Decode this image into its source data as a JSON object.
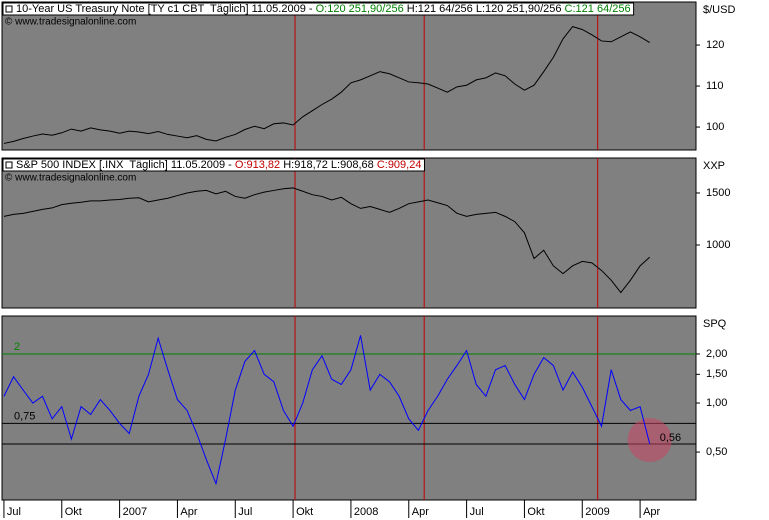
{
  "chart_data": [
    {
      "type": "line",
      "legend": [
        {
          "text": "10-Year US Treasury Note [TY c1 CBT  Täglich] 11.05.2009 - ",
          "color": "#000000"
        },
        {
          "text": "O:120 251,90/256",
          "color": "#008000"
        },
        {
          "text": " H:121 64/256 L:120 251,90/256 ",
          "color": "#000000"
        },
        {
          "text": "C:121 64/256",
          "color": "#008000"
        }
      ],
      "source": "© www.tradesignalonline.com",
      "unit": "$/USD",
      "color": "#000000",
      "x": [
        0,
        0.5,
        1,
        1.5,
        2,
        2.5,
        3,
        3.5,
        4,
        4.5,
        5,
        5.5,
        6,
        6.5,
        7,
        7.5,
        8,
        8.5,
        9,
        9.5,
        10,
        10.5,
        11,
        11.5,
        12,
        12.5,
        13,
        13.5,
        14,
        14.5,
        15,
        15.5,
        16,
        16.5,
        17,
        17.5,
        18,
        18.5,
        19,
        19.5,
        20,
        20.5,
        21,
        21.5,
        22,
        22.5,
        23,
        23.5,
        24,
        24.5,
        25,
        25.5,
        26,
        26.5,
        27,
        27.5,
        28,
        28.5,
        29,
        29.5,
        30,
        30.5,
        31,
        31.5,
        32,
        32.5,
        33,
        33.5
      ],
      "values": [
        96.0,
        96.5,
        97.2,
        97.8,
        98.3,
        98.0,
        98.6,
        99.5,
        99.0,
        99.8,
        99.3,
        99.0,
        98.5,
        99.0,
        98.8,
        98.4,
        98.9,
        98.2,
        97.8,
        97.4,
        97.9,
        97.0,
        96.6,
        97.5,
        98.2,
        99.4,
        100.2,
        99.6,
        100.8,
        101.0,
        100.5,
        102.5,
        104.0,
        105.5,
        106.8,
        108.5,
        110.8,
        111.5,
        112.5,
        113.5,
        113.0,
        112.0,
        111.0,
        110.8,
        110.5,
        109.5,
        108.5,
        109.8,
        110.2,
        111.5,
        112.0,
        113.2,
        112.5,
        110.5,
        109.0,
        110.2,
        113.5,
        117.0,
        121.5,
        124.5,
        123.8,
        122.5,
        121.0,
        120.8,
        122.0,
        123.2,
        122.0,
        120.6
      ],
      "xlim": [
        -0.1,
        35.9
      ],
      "ylim": [
        94.4,
        130.5
      ],
      "yticks": [
        100,
        110,
        120
      ],
      "log": false,
      "vlines": [
        15.1,
        21.8,
        30.8
      ],
      "vline_color": "#c00000"
    },
    {
      "type": "line",
      "legend": [
        {
          "text": "S&P 500 INDEX [.INX  Täglich] 11.05.2009 - ",
          "color": "#000000"
        },
        {
          "text": "O:913,82",
          "color": "#c00000"
        },
        {
          "text": " H:918,72 L:908,68 ",
          "color": "#000000"
        },
        {
          "text": "C:909,24",
          "color": "#c00000"
        }
      ],
      "source": "© www.tradesignalonline.com",
      "unit": "XXP",
      "color": "#000000",
      "x": [
        0,
        0.5,
        1,
        1.5,
        2,
        2.5,
        3,
        3.5,
        4,
        4.5,
        5,
        5.5,
        6,
        6.5,
        7,
        7.5,
        8,
        8.5,
        9,
        9.5,
        10,
        10.5,
        11,
        11.5,
        12,
        12.5,
        13,
        13.5,
        14,
        14.5,
        15,
        15.5,
        16,
        16.5,
        17,
        17.5,
        18,
        18.5,
        19,
        19.5,
        20,
        20.5,
        21,
        21.5,
        22,
        22.5,
        23,
        23.5,
        24,
        24.5,
        25,
        25.5,
        26,
        26.5,
        27,
        27.5,
        28,
        28.5,
        29,
        29.5,
        30,
        30.5,
        31,
        31.5,
        32,
        32.5,
        33,
        33.5
      ],
      "values": [
        1250,
        1270,
        1280,
        1300,
        1320,
        1335,
        1370,
        1385,
        1395,
        1410,
        1410,
        1420,
        1425,
        1440,
        1445,
        1400,
        1420,
        1440,
        1470,
        1500,
        1520,
        1530,
        1490,
        1520,
        1460,
        1440,
        1480,
        1510,
        1530,
        1550,
        1560,
        1520,
        1480,
        1460,
        1420,
        1450,
        1380,
        1330,
        1350,
        1320,
        1290,
        1330,
        1380,
        1400,
        1420,
        1390,
        1360,
        1280,
        1250,
        1270,
        1280,
        1290,
        1250,
        1200,
        1100,
        900,
        960,
        850,
        800,
        850,
        880,
        870,
        820,
        760,
        690,
        760,
        850,
        910
      ],
      "xlim": [
        -0.1,
        35.9
      ],
      "ylim": [
        612,
        1970
      ],
      "yticks": [
        1000,
        1500
      ],
      "log": true,
      "vlines": [
        15.1,
        21.8,
        30.8
      ],
      "vline_color": "#c00000"
    },
    {
      "type": "line",
      "unit": "SPQ",
      "color": "#0000ff",
      "x": [
        0,
        0.5,
        1,
        1.5,
        2,
        2.5,
        3,
        3.5,
        4,
        4.5,
        5,
        5.5,
        6,
        6.5,
        7,
        7.5,
        8,
        8.5,
        9,
        9.5,
        10,
        10.5,
        11,
        11.5,
        12,
        12.5,
        13,
        13.5,
        14,
        14.5,
        15,
        15.5,
        16,
        16.5,
        17,
        17.5,
        18,
        18.5,
        19,
        19.5,
        20,
        20.5,
        21,
        21.5,
        22,
        22.5,
        23,
        23.5,
        24,
        24.5,
        25,
        25.5,
        26,
        26.5,
        27,
        27.5,
        28,
        28.5,
        29,
        29.5,
        30,
        30.5,
        31,
        31.5,
        32,
        32.5,
        33,
        33.5
      ],
      "values": [
        1.1,
        1.45,
        1.2,
        1.0,
        1.1,
        0.8,
        0.95,
        0.6,
        0.95,
        0.85,
        1.05,
        0.9,
        0.75,
        0.65,
        1.1,
        1.5,
        2.5,
        1.6,
        1.05,
        0.9,
        0.65,
        0.45,
        0.32,
        0.6,
        1.2,
        1.8,
        2.1,
        1.5,
        1.35,
        0.9,
        0.72,
        1.0,
        1.6,
        1.95,
        1.4,
        1.3,
        1.6,
        2.6,
        1.2,
        1.5,
        1.35,
        1.1,
        0.8,
        0.68,
        0.9,
        1.1,
        1.4,
        1.7,
        2.1,
        1.3,
        1.1,
        1.6,
        1.7,
        1.3,
        1.05,
        1.5,
        1.9,
        1.7,
        1.2,
        1.55,
        1.25,
        0.95,
        0.72,
        1.6,
        1.05,
        0.9,
        0.95,
        0.56
      ],
      "xlim": [
        -0.1,
        35.9
      ],
      "ylim": [
        0.254,
        3.42
      ],
      "log": true,
      "yticks": [
        {
          "value": 0.5,
          "label": "0,50"
        },
        {
          "value": 1,
          "label": "1,00"
        },
        {
          "value": 1.5,
          "label": "1,50"
        },
        {
          "value": 2,
          "label": "2,00"
        }
      ],
      "levels": [
        {
          "value": 2,
          "label": "2",
          "color": "#008000"
        },
        {
          "value": 0.75,
          "label": "0,75",
          "color": "#000000"
        }
      ],
      "last_value": {
        "value": 0.56,
        "label": "0,56"
      },
      "vlines": [
        15.1,
        21.8,
        30.8
      ],
      "vline_color": "#c00000",
      "xticks": [
        {
          "value": 0,
          "label": "Jul"
        },
        {
          "value": 3,
          "label": "Okt"
        },
        {
          "value": 6,
          "label": "2007"
        },
        {
          "value": 9,
          "label": "Apr"
        },
        {
          "value": 12,
          "label": "Jul"
        },
        {
          "value": 15,
          "label": "Okt"
        },
        {
          "value": 18,
          "label": "2008"
        },
        {
          "value": 21,
          "label": "Apr"
        },
        {
          "value": 24,
          "label": "Jul"
        },
        {
          "value": 27,
          "label": "Okt"
        },
        {
          "value": 30,
          "label": "2009"
        },
        {
          "value": 33,
          "label": "Apr"
        }
      ]
    }
  ]
}
